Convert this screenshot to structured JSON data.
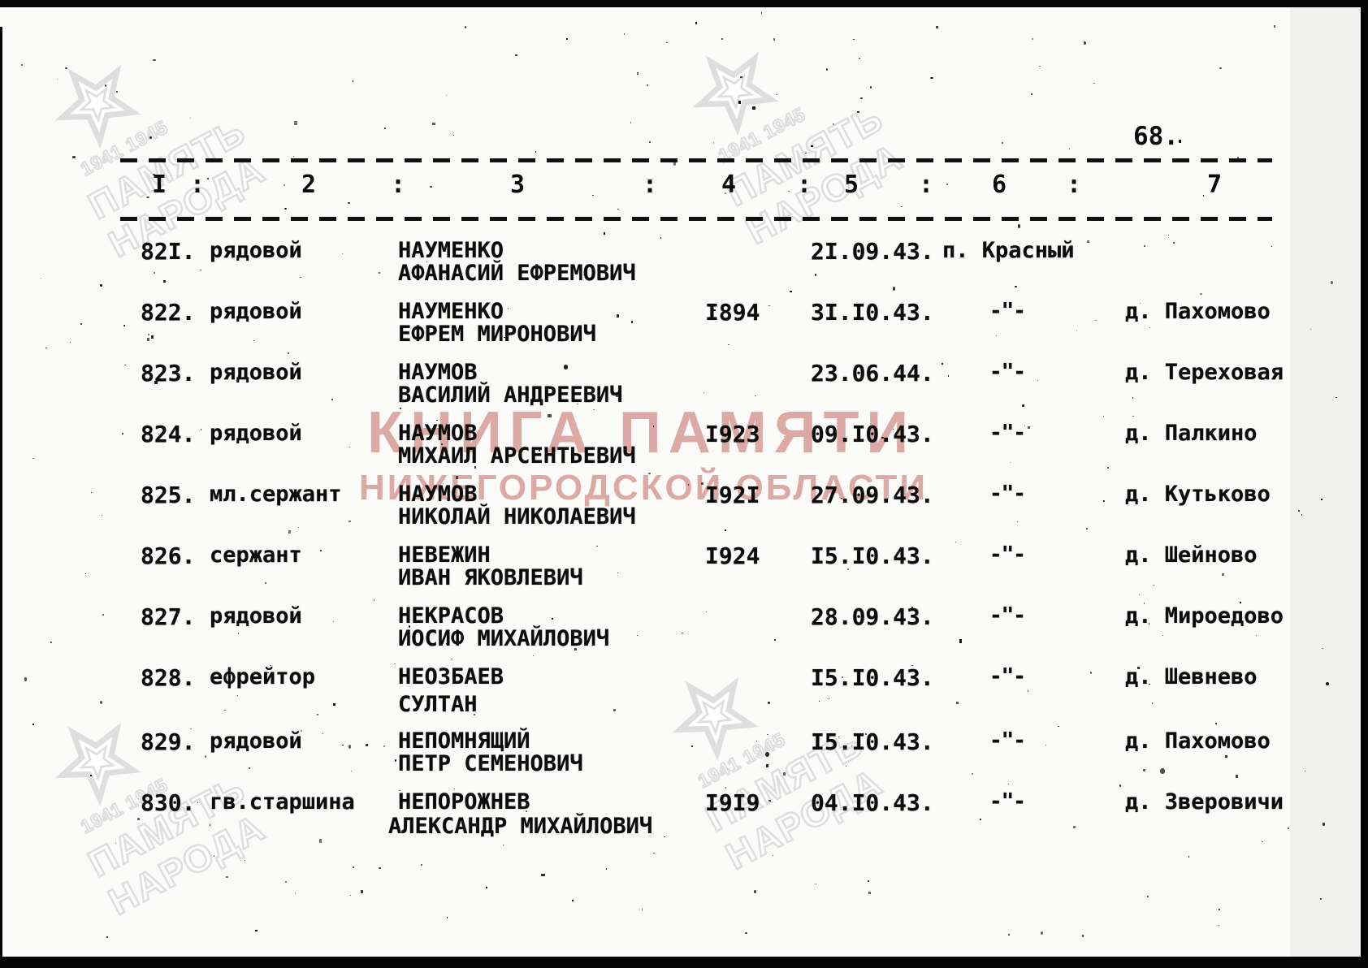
{
  "page": {
    "number": "68.",
    "header_columns": [
      "I",
      "2",
      "3",
      "4",
      "5",
      "6",
      "7"
    ],
    "header_separator": ":"
  },
  "watermarks": {
    "red_line1": "КНИГА ПАМЯТИ",
    "red_line2": "НИЖЕГОРОДСКОЙ ОБЛАСТИ",
    "red_color": "#c05850",
    "corner_years": "1941 1945",
    "corner_line1": "ПАМЯТЬ",
    "corner_line2": "НАРОДА",
    "corner_color": "#dedede",
    "star_icon": "outline-star"
  },
  "table": {
    "rows": [
      {
        "num": "82I.",
        "rank": "рядовой",
        "surname": "НАУМЕНКО",
        "given": "АФАНАСИЙ ЕФРЕМОВИЧ",
        "year": "",
        "date": "2I.09.43.",
        "col6": "п. Красный",
        "col6_type": "region",
        "place": ""
      },
      {
        "num": "822.",
        "rank": "рядовой",
        "surname": "НАУМЕНКО",
        "given": "ЕФРЕМ МИРОНОВИЧ",
        "year": "I894",
        "date": "3I.I0.43.",
        "col6": "-\"-",
        "col6_type": "ditto",
        "place": "д. Пахомово"
      },
      {
        "num": "823.",
        "rank": "рядовой",
        "surname": "НАУМОВ",
        "given": "ВАСИЛИЙ АНДРЕЕВИЧ",
        "year": "",
        "date": "23.06.44.",
        "col6": "-\"-",
        "col6_type": "ditto",
        "place": "д. Тереховая"
      },
      {
        "num": "824.",
        "rank": "рядовой",
        "surname": "НАУМОВ",
        "given": "МИХАИЛ АРСЕНТЬЕВИЧ",
        "year": "I923",
        "date": "09.I0.43.",
        "col6": "-\"-",
        "col6_type": "ditto",
        "place": "д. Палкино"
      },
      {
        "num": "825.",
        "rank": "мл.сержант",
        "surname": "НАУМОВ",
        "given": "НИКОЛАЙ НИКОЛАЕВИЧ",
        "year": "I92I",
        "date": "27.09.43.",
        "col6": "-\"-",
        "col6_type": "ditto",
        "place": "д. Кутьково"
      },
      {
        "num": "826.",
        "rank": "сержант",
        "surname": "НЕВЕЖИН",
        "given": "ИВАН ЯКОВЛЕВИЧ",
        "year": "I924",
        "date": "I5.I0.43.",
        "col6": "-\"-",
        "col6_type": "ditto",
        "place": "д. Шейново"
      },
      {
        "num": "827.",
        "rank": "рядовой",
        "surname": "НЕКРАСОВ",
        "given": "ИОСИФ МИХАЙЛОВИЧ",
        "year": "",
        "date": "28.09.43.",
        "col6": "-\"-",
        "col6_type": "ditto",
        "place": "д. Мироедово"
      },
      {
        "num": "828.",
        "rank": "ефрейтор",
        "surname": "НЕОЗБАЕВ",
        "given": "СУЛТАН",
        "year": "",
        "date": "I5.I0.43.",
        "col6": "-\"-",
        "col6_type": "ditto",
        "place": "д. Шевнево"
      },
      {
        "num": "829.",
        "rank": "рядовой",
        "surname": "НЕПОМНЯЩИЙ",
        "given": "ПЕТР СЕМЕНОВИЧ",
        "year": "",
        "date": "I5.I0.43.",
        "col6": "-\"-",
        "col6_type": "ditto",
        "place": "д. Пахомово"
      },
      {
        "num": "830.",
        "rank": "гв.старшина",
        "surname": "НЕПОРОЖНЕВ",
        "given": "АЛЕКСАНДР МИХАЙЛОВИЧ",
        "year": "I9I9",
        "date": "04.I0.43.",
        "col6": "-\"-",
        "col6_type": "ditto",
        "place": "д. Зверовичи"
      }
    ]
  }
}
